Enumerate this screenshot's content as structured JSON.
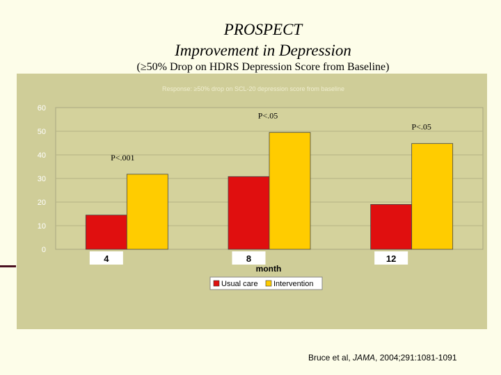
{
  "slide": {
    "title_line1": "PROSPECT",
    "title_line2": "Improvement in Depression",
    "subtitle": "(≥50% Drop on HDRS Depression Score from Baseline)",
    "citation_author": "Bruce et al, ",
    "citation_journal": "JAMA",
    "citation_rest": ", 2004;291:1081-1091"
  },
  "chart_data": {
    "type": "bar",
    "title": "Response: ≥50% drop on SCL-20 depression score from baseline",
    "categories": [
      "4",
      "8",
      "12"
    ],
    "xlabel": "month",
    "ylabel": "",
    "ylim": [
      0,
      60
    ],
    "yticks": [
      "0",
      "10",
      "20",
      "30",
      "40",
      "50",
      "60"
    ],
    "series": [
      {
        "name": "Usual care",
        "values": [
          14.5,
          30.8,
          19
        ]
      },
      {
        "name": "Intervention",
        "values": [
          31.8,
          49.5,
          44.8
        ]
      }
    ],
    "annotations": [
      "P<.001",
      "P<.05",
      "P<.05"
    ],
    "legend": "bottom-center",
    "colors": {
      "usual_care": "#e00f0f",
      "intervention": "#ffcc00",
      "plot_bg": "#d4d29c",
      "panel_bg": "#cfcd98"
    }
  }
}
